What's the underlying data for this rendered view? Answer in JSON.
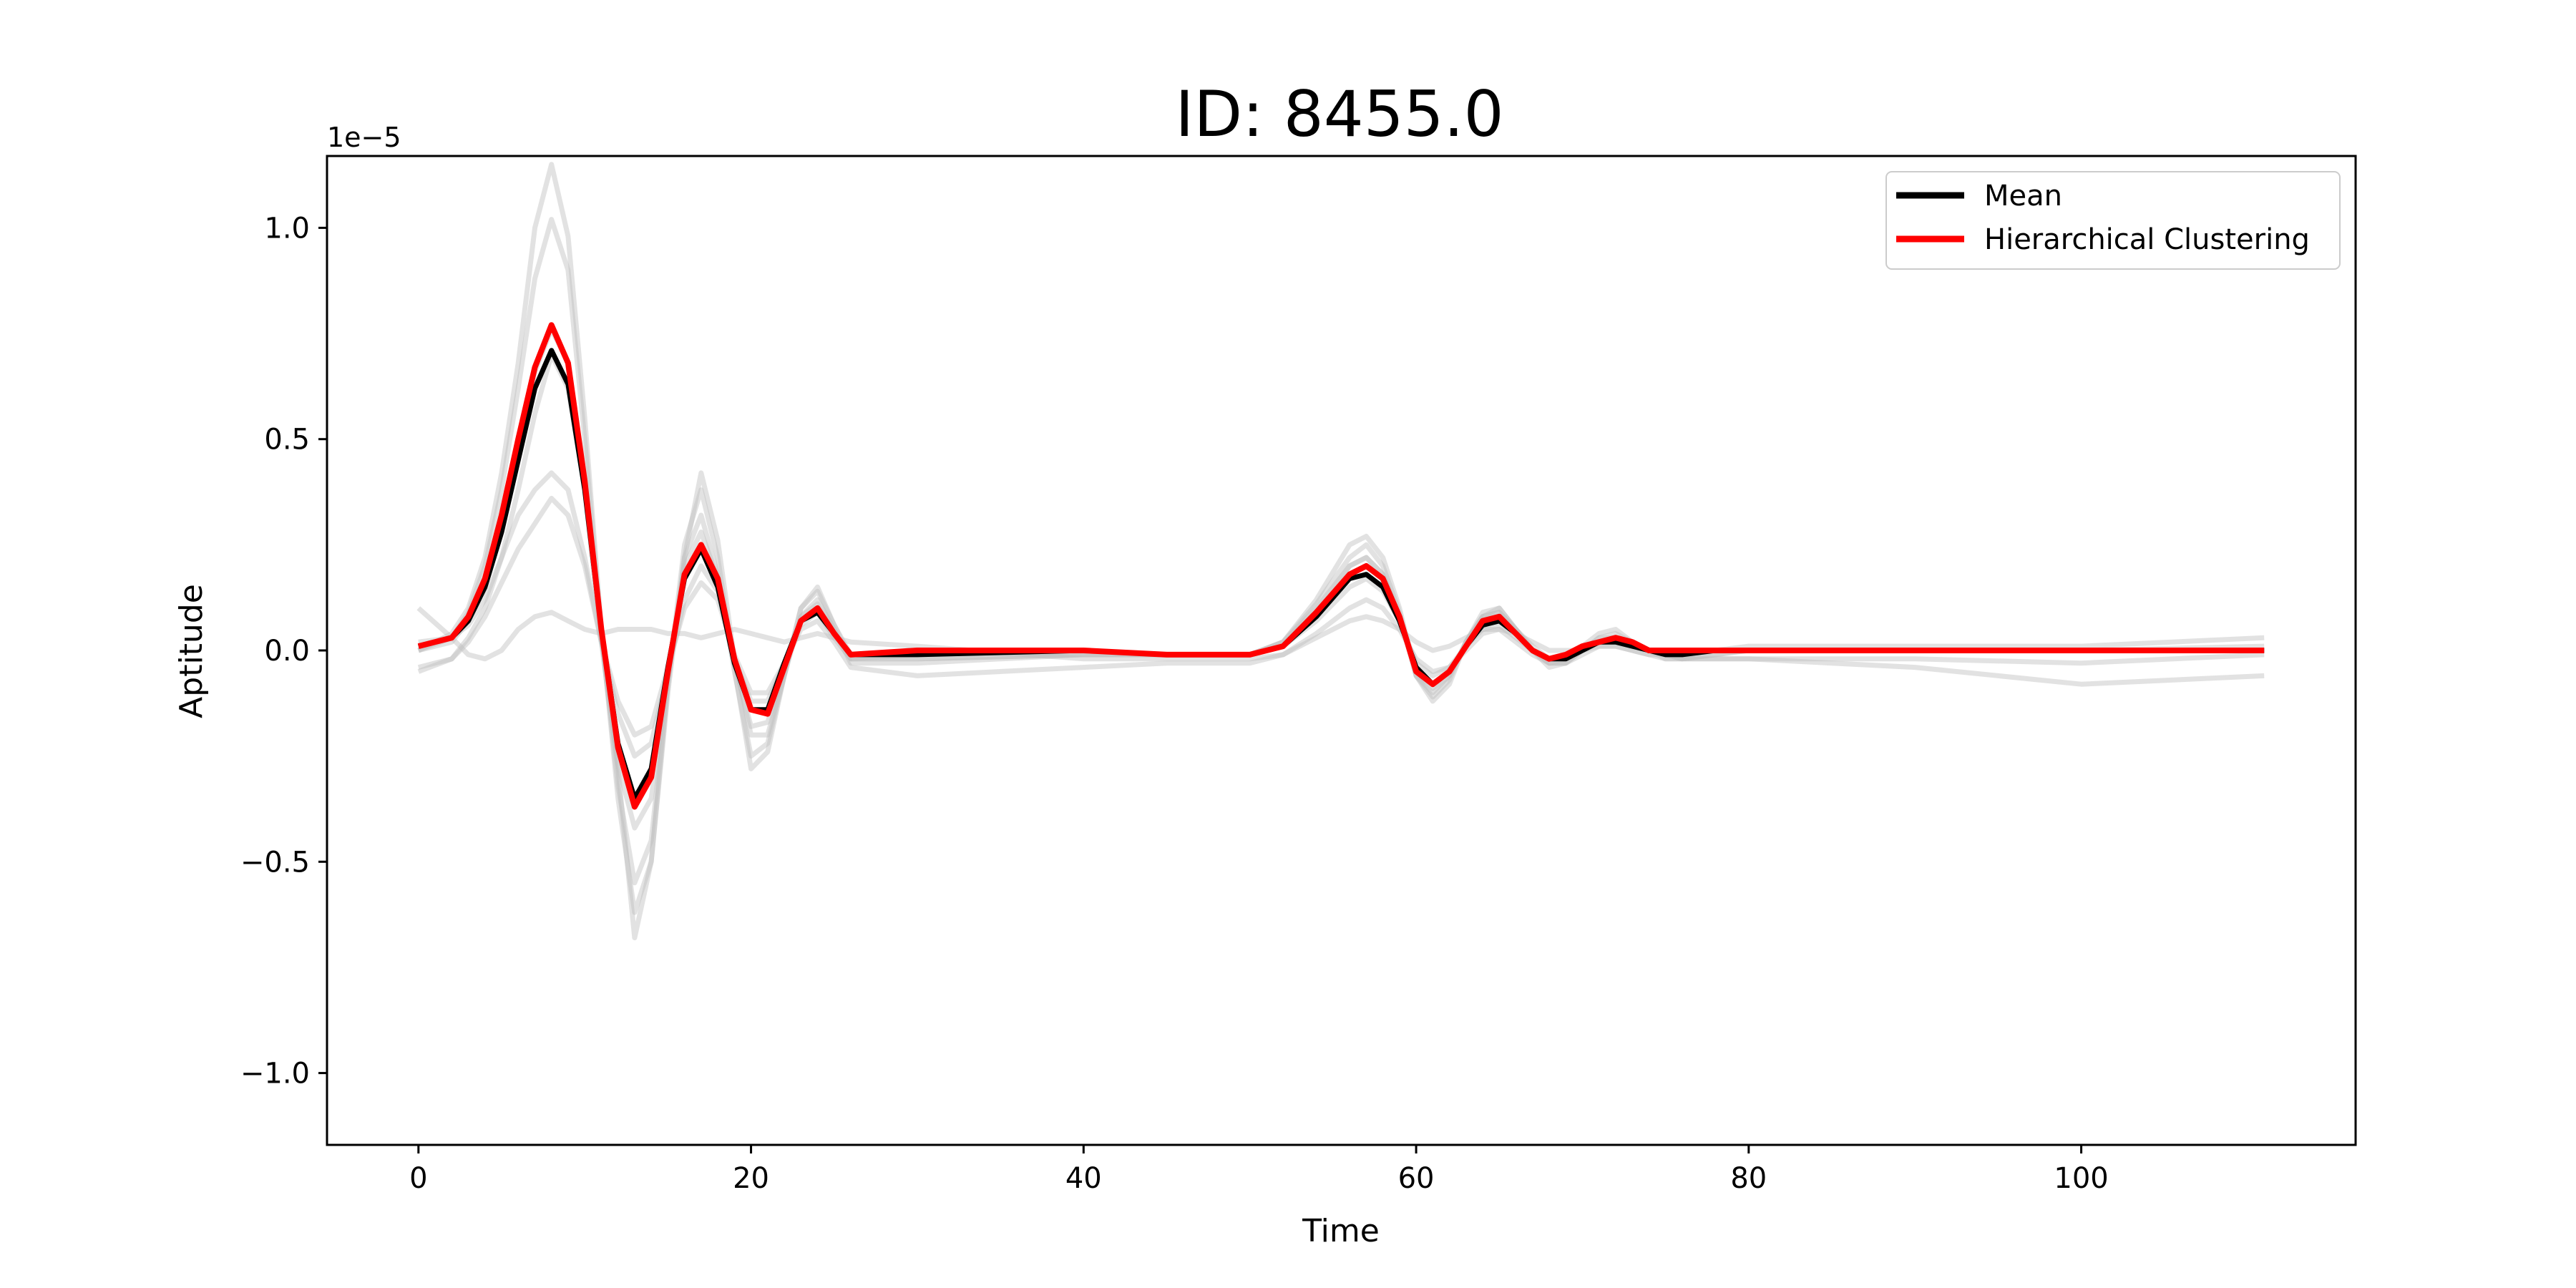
{
  "chart_data": {
    "type": "line",
    "title": "ID: 8455.0",
    "xlabel": "Time",
    "ylabel": "Aptitude",
    "y_offset_label": "1e−5",
    "xlim": [
      -5.5,
      116.5
    ],
    "ylim": [
      -1.17,
      1.17
    ],
    "x_ticks": [
      0,
      20,
      40,
      60,
      80,
      100
    ],
    "x_tick_labels": [
      "0",
      "20",
      "40",
      "60",
      "80",
      "100"
    ],
    "y_ticks": [
      1.0,
      0.5,
      0.0,
      -0.5,
      -1.0
    ],
    "y_tick_labels": [
      "1.0",
      "0.5",
      "0.0",
      "−0.5",
      "−1.0"
    ],
    "grid": false,
    "legend_position": "upper right",
    "legend": [
      {
        "label": "Mean",
        "color": "#000000"
      },
      {
        "label": "Hierarchical Clustering",
        "color": "#ff0000"
      }
    ],
    "x": [
      0,
      2,
      3,
      4,
      5,
      6,
      7,
      8,
      9,
      10,
      11,
      12,
      13,
      14,
      15,
      16,
      17,
      18,
      19,
      20,
      21,
      22,
      23,
      24,
      25,
      26,
      30,
      40,
      45,
      50,
      52,
      54,
      56,
      57,
      58,
      59,
      60,
      61,
      62,
      63,
      64,
      65,
      66,
      67,
      68,
      69,
      70,
      71,
      72,
      73,
      74,
      75,
      76,
      78,
      80,
      85,
      90,
      100,
      111
    ],
    "series": [
      {
        "name": "Mean",
        "color": "#000000",
        "values": [
          0.01,
          0.03,
          0.07,
          0.15,
          0.28,
          0.45,
          0.62,
          0.71,
          0.63,
          0.38,
          0.05,
          -0.22,
          -0.35,
          -0.28,
          -0.04,
          0.17,
          0.24,
          0.15,
          -0.03,
          -0.14,
          -0.14,
          -0.03,
          0.07,
          0.09,
          0.04,
          -0.01,
          -0.01,
          0.0,
          -0.01,
          -0.01,
          0.01,
          0.08,
          0.17,
          0.18,
          0.15,
          0.07,
          -0.04,
          -0.08,
          -0.05,
          0.01,
          0.06,
          0.07,
          0.04,
          0.0,
          -0.02,
          -0.02,
          0.0,
          0.02,
          0.02,
          0.01,
          0.0,
          -0.01,
          -0.01,
          0.0,
          0.0,
          0.0,
          0.0,
          0.0,
          0.0
        ]
      },
      {
        "name": "Hierarchical Clustering",
        "color": "#ff0000",
        "values": [
          0.01,
          0.03,
          0.08,
          0.17,
          0.32,
          0.5,
          0.67,
          0.77,
          0.68,
          0.4,
          0.05,
          -0.23,
          -0.37,
          -0.3,
          -0.05,
          0.18,
          0.25,
          0.17,
          -0.02,
          -0.14,
          -0.15,
          -0.04,
          0.07,
          0.1,
          0.04,
          -0.01,
          0.0,
          0.0,
          -0.01,
          -0.01,
          0.01,
          0.09,
          0.18,
          0.2,
          0.17,
          0.08,
          -0.05,
          -0.08,
          -0.05,
          0.01,
          0.07,
          0.08,
          0.04,
          0.0,
          -0.02,
          -0.01,
          0.01,
          0.02,
          0.03,
          0.02,
          0.0,
          0.0,
          0.0,
          0.0,
          0.0,
          0.0,
          0.0,
          0.0,
          0.0
        ]
      },
      {
        "name": "",
        "color": "#bfbfbf",
        "values": [
          0.0,
          0.04,
          0.1,
          0.22,
          0.42,
          0.68,
          1.0,
          1.15,
          0.98,
          0.55,
          0.05,
          -0.35,
          -0.62,
          -0.5,
          -0.1,
          0.22,
          0.32,
          0.18,
          -0.05,
          -0.25,
          -0.22,
          -0.06,
          0.08,
          0.12,
          0.05,
          -0.03,
          -0.03,
          -0.01,
          -0.01,
          -0.01,
          0.02,
          0.12,
          0.25,
          0.27,
          0.22,
          0.1,
          -0.06,
          -0.12,
          -0.08,
          0.02,
          0.09,
          0.1,
          0.05,
          0.0,
          -0.04,
          -0.03,
          0.0,
          0.03,
          0.04,
          0.02,
          0.0,
          -0.02,
          -0.02,
          -0.01,
          0.0,
          0.0,
          0.0,
          0.0,
          0.01
        ]
      },
      {
        "name": "",
        "color": "#bfbfbf",
        "values": [
          0.0,
          0.03,
          0.09,
          0.2,
          0.38,
          0.62,
          0.88,
          1.02,
          0.9,
          0.5,
          0.04,
          -0.32,
          -0.55,
          -0.45,
          -0.08,
          0.25,
          0.38,
          0.22,
          -0.04,
          -0.28,
          -0.24,
          -0.06,
          0.1,
          0.14,
          0.06,
          -0.02,
          -0.02,
          -0.01,
          -0.01,
          -0.01,
          0.02,
          0.11,
          0.22,
          0.25,
          0.2,
          0.09,
          -0.06,
          -0.11,
          -0.07,
          0.02,
          0.08,
          0.09,
          0.05,
          0.0,
          -0.03,
          -0.03,
          0.0,
          0.03,
          0.03,
          0.02,
          0.0,
          -0.01,
          -0.02,
          -0.01,
          0.0,
          0.0,
          0.0,
          0.0,
          0.0
        ]
      },
      {
        "name": "",
        "color": "#bfbfbf",
        "values": [
          0.0,
          0.02,
          0.07,
          0.16,
          0.3,
          0.48,
          0.66,
          0.76,
          0.68,
          0.4,
          0.03,
          -0.27,
          -0.42,
          -0.35,
          -0.07,
          0.2,
          0.28,
          0.17,
          -0.03,
          -0.18,
          -0.17,
          -0.05,
          0.08,
          0.11,
          0.04,
          -0.02,
          -0.01,
          0.0,
          -0.01,
          -0.01,
          0.01,
          0.09,
          0.2,
          0.22,
          0.18,
          0.08,
          -0.05,
          -0.09,
          -0.06,
          0.02,
          0.08,
          0.09,
          0.05,
          0.0,
          -0.03,
          -0.02,
          0.0,
          0.02,
          0.03,
          0.02,
          0.0,
          -0.01,
          -0.01,
          0.0,
          0.0,
          0.0,
          0.0,
          0.0,
          0.0
        ]
      },
      {
        "name": "",
        "color": "#bfbfbf",
        "values": [
          0.02,
          0.03,
          0.06,
          0.12,
          0.22,
          0.32,
          0.38,
          0.42,
          0.38,
          0.22,
          0.02,
          -0.15,
          -0.25,
          -0.22,
          -0.05,
          0.12,
          0.2,
          0.14,
          -0.02,
          -0.12,
          -0.12,
          -0.03,
          0.06,
          0.09,
          0.03,
          -0.02,
          -0.02,
          -0.01,
          -0.01,
          -0.01,
          0.01,
          0.07,
          0.15,
          0.17,
          0.14,
          0.07,
          -0.03,
          -0.06,
          -0.04,
          0.01,
          0.05,
          0.06,
          0.03,
          0.0,
          -0.02,
          -0.02,
          0.0,
          0.02,
          0.02,
          0.01,
          0.0,
          -0.01,
          -0.01,
          0.0,
          0.0,
          0.0,
          0.0,
          0.0,
          0.0
        ]
      },
      {
        "name": "",
        "color": "#bfbfbf",
        "values": [
          -0.04,
          -0.02,
          0.02,
          0.08,
          0.16,
          0.24,
          0.3,
          0.36,
          0.32,
          0.2,
          0.02,
          -0.12,
          -0.2,
          -0.18,
          -0.04,
          0.1,
          0.16,
          0.12,
          -0.01,
          -0.1,
          -0.1,
          -0.03,
          0.05,
          0.07,
          0.02,
          -0.04,
          -0.06,
          -0.04,
          -0.03,
          -0.03,
          -0.01,
          0.04,
          0.1,
          0.12,
          0.1,
          0.05,
          -0.02,
          -0.05,
          -0.04,
          0.0,
          0.04,
          0.05,
          0.02,
          -0.01,
          -0.03,
          -0.03,
          -0.01,
          0.01,
          0.01,
          0.0,
          -0.01,
          -0.02,
          -0.02,
          -0.02,
          -0.02,
          -0.02,
          -0.02,
          -0.03,
          -0.01
        ]
      },
      {
        "name": "",
        "color": "#bfbfbf",
        "values": [
          0.1,
          0.03,
          -0.01,
          -0.02,
          0.0,
          0.05,
          0.08,
          0.09,
          0.07,
          0.05,
          0.04,
          0.05,
          0.05,
          0.05,
          0.04,
          0.04,
          0.03,
          0.04,
          0.05,
          0.04,
          0.03,
          0.02,
          0.03,
          0.04,
          0.03,
          0.02,
          0.01,
          -0.02,
          -0.02,
          -0.02,
          -0.01,
          0.03,
          0.07,
          0.08,
          0.07,
          0.05,
          0.02,
          0.0,
          0.01,
          0.03,
          0.05,
          0.05,
          0.04,
          0.02,
          0.0,
          0.0,
          0.0,
          0.01,
          0.01,
          0.0,
          -0.01,
          -0.01,
          -0.02,
          -0.02,
          -0.02,
          -0.03,
          -0.04,
          -0.08,
          -0.06
        ]
      },
      {
        "name": "",
        "color": "#bfbfbf",
        "values": [
          -0.05,
          -0.02,
          0.03,
          0.1,
          0.22,
          0.38,
          0.56,
          0.7,
          0.62,
          0.38,
          0.02,
          -0.28,
          -0.68,
          -0.5,
          -0.08,
          0.22,
          0.42,
          0.26,
          -0.02,
          -0.2,
          -0.2,
          -0.06,
          0.1,
          0.15,
          0.06,
          -0.01,
          0.0,
          0.0,
          -0.01,
          -0.01,
          0.02,
          0.1,
          0.2,
          0.22,
          0.18,
          0.08,
          -0.06,
          -0.1,
          -0.06,
          0.02,
          0.08,
          0.1,
          0.05,
          0.01,
          -0.02,
          -0.02,
          0.01,
          0.04,
          0.05,
          0.02,
          0.0,
          -0.01,
          -0.01,
          0.0,
          0.01,
          0.01,
          0.01,
          0.01,
          0.03
        ]
      }
    ]
  }
}
